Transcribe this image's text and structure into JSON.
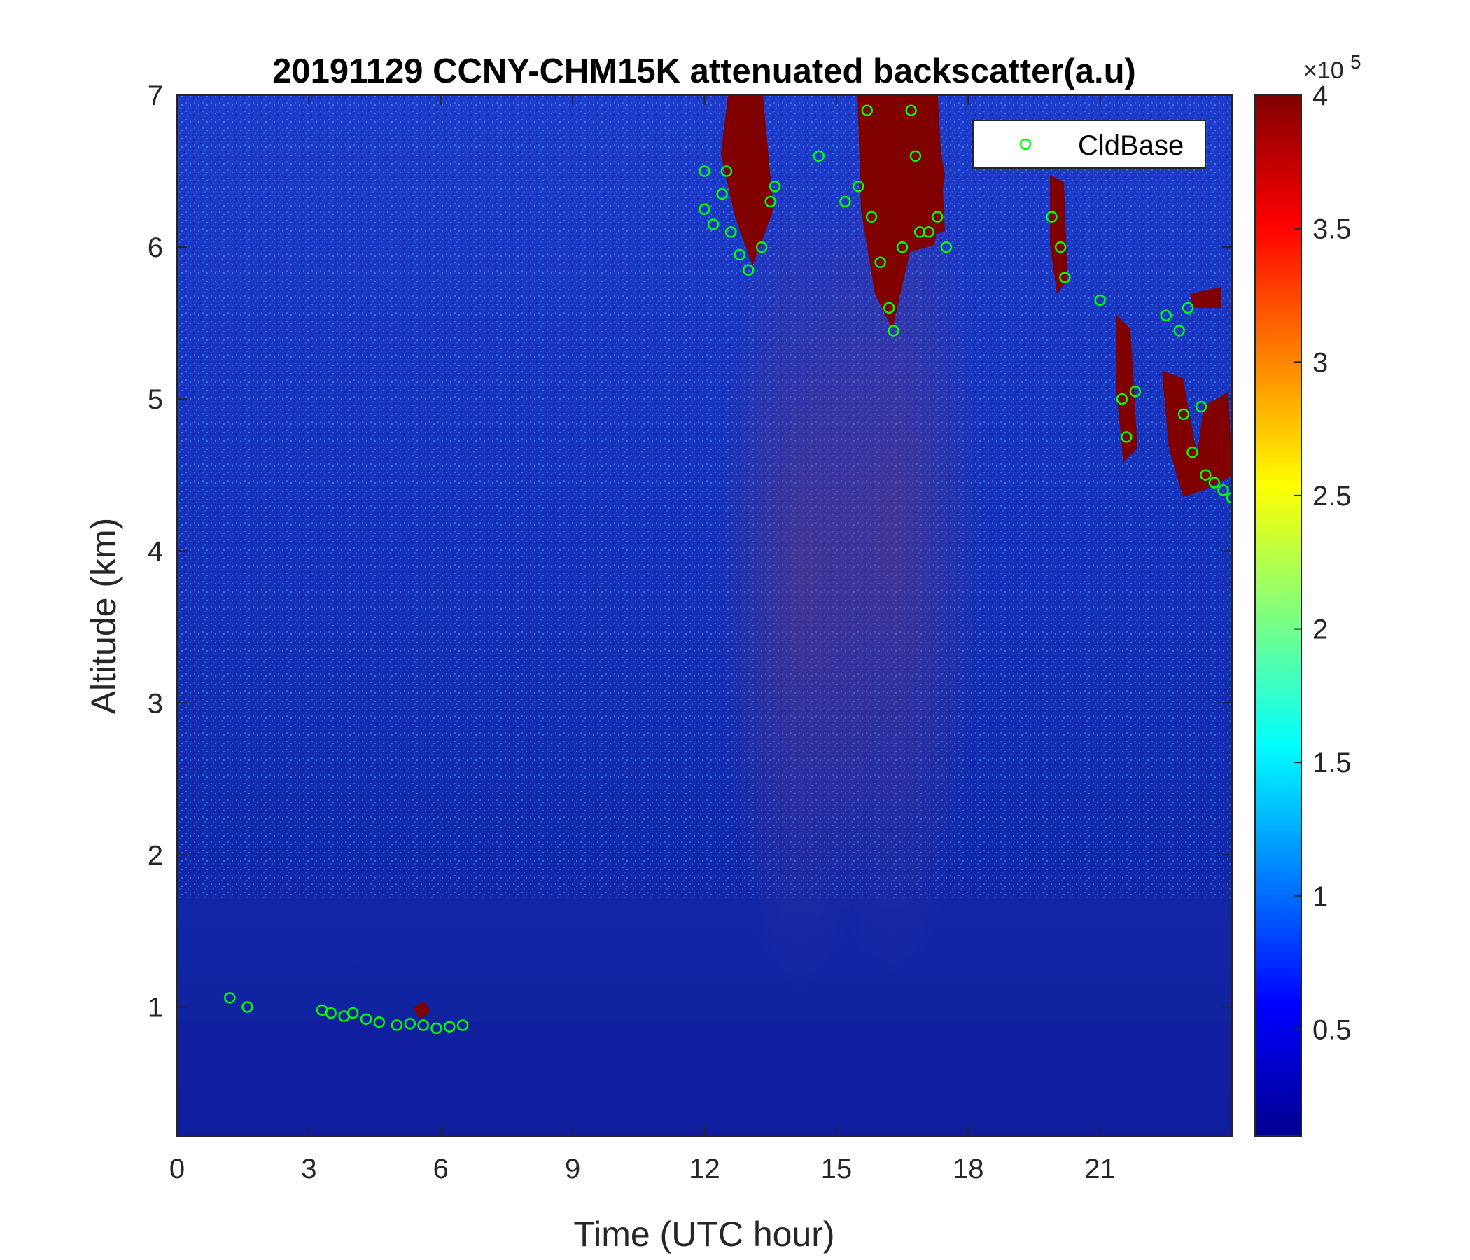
{
  "chart_data": {
    "type": "heatmap",
    "title": "20191129 CCNY-CHM15K attenuated backscatter(a.u)",
    "xlabel": "Time (UTC hour)",
    "ylabel": "Altitude (km)",
    "xlim": [
      0,
      24
    ],
    "ylim": [
      0.15,
      7
    ],
    "xticks": [
      "0",
      "3",
      "6",
      "9",
      "12",
      "15",
      "18",
      "21"
    ],
    "yticks": [
      "1",
      "2",
      "3",
      "4",
      "5",
      "6",
      "7"
    ],
    "colorbar": {
      "colormap": "jet",
      "range": [
        0.1,
        4
      ],
      "ticks": [
        "0.5",
        "1",
        "1.5",
        "2",
        "2.5",
        "3",
        "3.5",
        "4"
      ],
      "multiplier": "×10",
      "exponent": "5"
    },
    "legend": {
      "entries": [
        "CldBase"
      ],
      "placement": "top-right"
    },
    "series": [
      {
        "name": "CldBase",
        "marker": "circle",
        "color": "#00ff00",
        "points": [
          [
            1.2,
            1.06
          ],
          [
            1.6,
            1.0
          ],
          [
            3.3,
            0.98
          ],
          [
            3.5,
            0.96
          ],
          [
            3.8,
            0.94
          ],
          [
            4.0,
            0.96
          ],
          [
            4.3,
            0.92
          ],
          [
            4.6,
            0.9
          ],
          [
            5.0,
            0.88
          ],
          [
            5.3,
            0.89
          ],
          [
            5.6,
            0.88
          ],
          [
            5.9,
            0.86
          ],
          [
            6.2,
            0.87
          ],
          [
            6.5,
            0.88
          ],
          [
            12.0,
            6.5
          ],
          [
            12.0,
            6.25
          ],
          [
            12.2,
            6.15
          ],
          [
            12.4,
            6.35
          ],
          [
            12.5,
            6.5
          ],
          [
            12.6,
            6.1
          ],
          [
            12.8,
            5.95
          ],
          [
            13.0,
            5.85
          ],
          [
            13.3,
            6.0
          ],
          [
            13.5,
            6.3
          ],
          [
            13.6,
            6.4
          ],
          [
            15.2,
            6.3
          ],
          [
            15.5,
            6.4
          ],
          [
            15.7,
            6.9
          ],
          [
            15.8,
            6.2
          ],
          [
            16.0,
            5.9
          ],
          [
            16.2,
            5.6
          ],
          [
            16.3,
            5.45
          ],
          [
            16.5,
            6.0
          ],
          [
            16.7,
            6.9
          ],
          [
            16.8,
            6.6
          ],
          [
            16.9,
            6.1
          ],
          [
            17.1,
            6.1
          ],
          [
            17.3,
            6.2
          ],
          [
            17.5,
            6.0
          ],
          [
            14.6,
            6.6
          ],
          [
            19.9,
            6.2
          ],
          [
            20.1,
            6.0
          ],
          [
            20.2,
            5.8
          ],
          [
            21.0,
            5.65
          ],
          [
            21.5,
            5.0
          ],
          [
            21.6,
            4.75
          ],
          [
            21.8,
            5.05
          ],
          [
            22.5,
            5.55
          ],
          [
            22.8,
            5.45
          ],
          [
            23.0,
            5.6
          ],
          [
            22.9,
            4.9
          ],
          [
            23.1,
            4.65
          ],
          [
            23.3,
            4.95
          ],
          [
            23.4,
            4.5
          ],
          [
            23.6,
            4.45
          ],
          [
            23.8,
            4.4
          ],
          [
            24.0,
            4.35
          ]
        ]
      }
    ]
  }
}
